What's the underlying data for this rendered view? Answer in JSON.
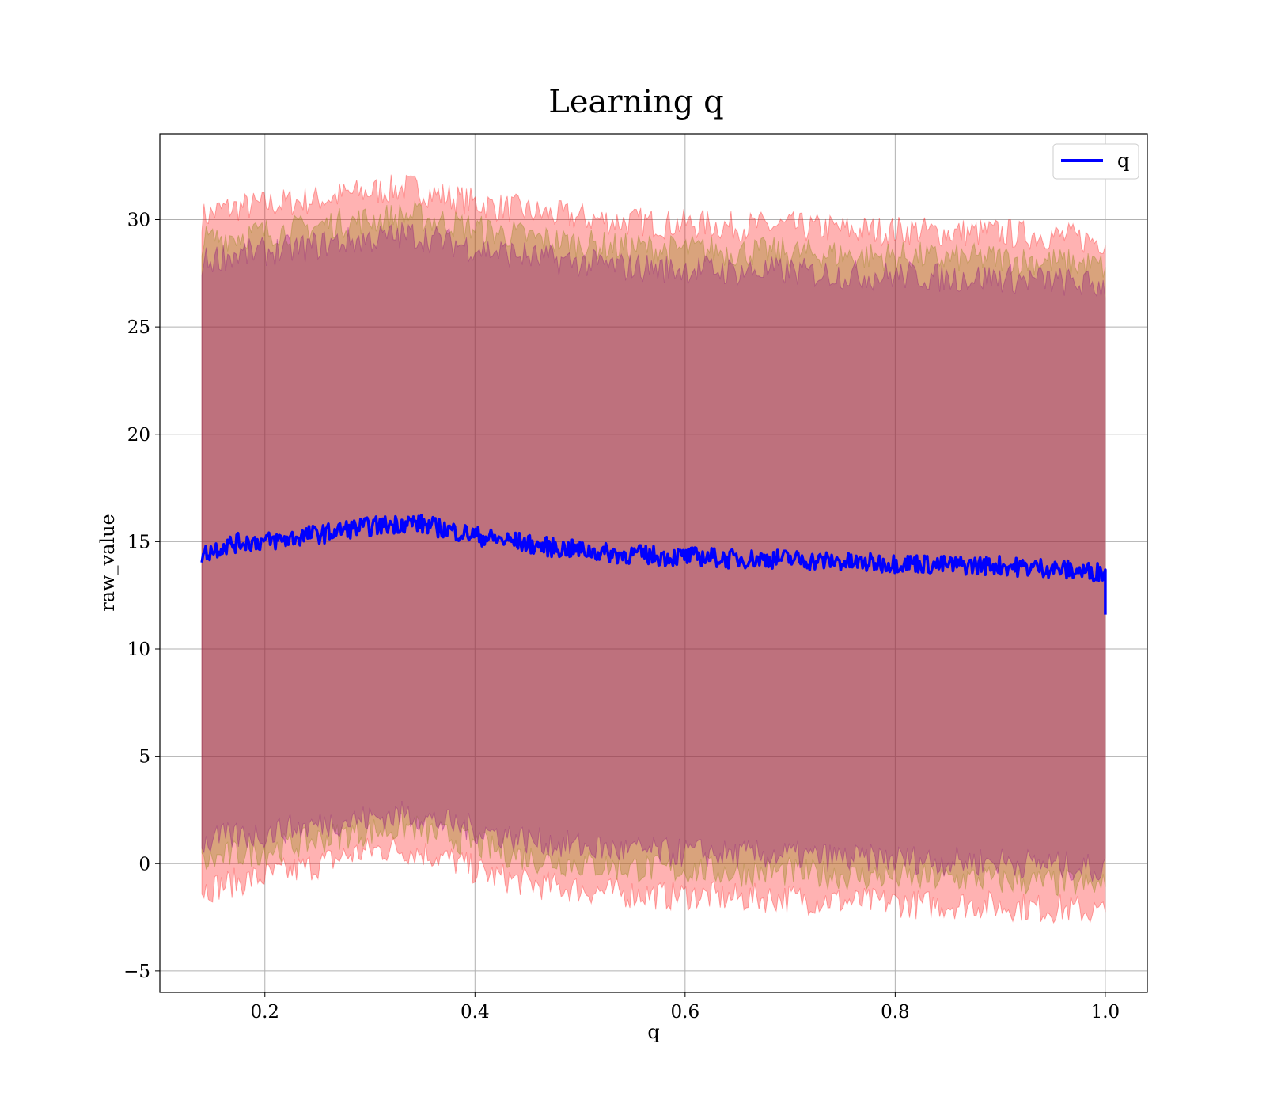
{
  "chart_data": {
    "type": "line",
    "title": "Learning q",
    "xlabel": "q",
    "ylabel": "raw_value",
    "xlim": [
      0.1,
      1.04
    ],
    "ylim": [
      -6,
      34
    ],
    "x_ticks": [
      0.2,
      0.4,
      0.6,
      0.8,
      1.0
    ],
    "x_tick_labels": [
      "0.2",
      "0.4",
      "0.6",
      "0.8",
      "1.0"
    ],
    "y_ticks": [
      -5,
      0,
      5,
      10,
      15,
      20,
      25,
      30
    ],
    "y_tick_labels": [
      "−5",
      "0",
      "5",
      "10",
      "15",
      "20",
      "25",
      "30"
    ],
    "grid": true,
    "legend": {
      "position": "top-right",
      "entries": [
        "q"
      ]
    },
    "series": [
      {
        "name": "q",
        "color": "#0000ff",
        "x": [
          0.14,
          0.16,
          0.18,
          0.2,
          0.22,
          0.24,
          0.26,
          0.28,
          0.3,
          0.32,
          0.34,
          0.36,
          0.38,
          0.4,
          0.42,
          0.44,
          0.46,
          0.48,
          0.5,
          0.52,
          0.54,
          0.56,
          0.58,
          0.6,
          0.62,
          0.64,
          0.66,
          0.68,
          0.7,
          0.72,
          0.74,
          0.76,
          0.78,
          0.8,
          0.82,
          0.84,
          0.86,
          0.88,
          0.9,
          0.92,
          0.94,
          0.96,
          0.98,
          1.0
        ],
        "y": [
          14.4,
          14.8,
          15.0,
          15.0,
          15.1,
          15.3,
          15.4,
          15.6,
          15.7,
          15.8,
          15.9,
          15.7,
          15.5,
          15.3,
          15.1,
          15.0,
          14.8,
          14.7,
          14.6,
          14.5,
          14.4,
          14.4,
          14.3,
          14.3,
          14.3,
          14.2,
          14.2,
          14.2,
          14.2,
          14.1,
          14.1,
          14.0,
          14.0,
          14.0,
          14.0,
          13.9,
          13.9,
          13.9,
          13.9,
          13.8,
          13.8,
          13.7,
          13.6,
          13.6
        ]
      }
    ],
    "bands": [
      {
        "color": "#ff0000",
        "opacity": 0.3,
        "x": [
          0.14,
          0.16,
          0.18,
          0.2,
          0.22,
          0.24,
          0.26,
          0.28,
          0.3,
          0.32,
          0.34,
          0.36,
          0.38,
          0.4,
          0.42,
          0.44,
          0.46,
          0.48,
          0.5,
          0.52,
          0.54,
          0.56,
          0.58,
          0.6,
          0.62,
          0.64,
          0.66,
          0.68,
          0.7,
          0.72,
          0.74,
          0.76,
          0.78,
          0.8,
          0.82,
          0.84,
          0.86,
          0.88,
          0.9,
          0.92,
          0.94,
          0.96,
          0.98,
          1.0
        ],
        "lower": [
          -1.2,
          -1.0,
          -0.8,
          -0.6,
          -0.4,
          -0.2,
          0.1,
          0.4,
          0.6,
          0.7,
          0.6,
          0.4,
          0.1,
          -0.3,
          -0.6,
          -0.8,
          -1.0,
          -1.1,
          -1.2,
          -1.3,
          -1.4,
          -1.4,
          -1.5,
          -1.5,
          -1.5,
          -1.6,
          -1.6,
          -1.6,
          -1.6,
          -1.7,
          -1.7,
          -1.8,
          -1.8,
          -1.8,
          -1.9,
          -1.9,
          -1.9,
          -1.9,
          -2.0,
          -2.0,
          -2.1,
          -2.1,
          -2.2,
          -2.3
        ],
        "upper": [
          30.1,
          30.5,
          30.6,
          30.7,
          30.8,
          30.9,
          31.0,
          31.2,
          31.3,
          31.4,
          31.5,
          31.2,
          31.0,
          30.8,
          30.6,
          30.5,
          30.3,
          30.2,
          30.1,
          30.0,
          29.9,
          29.9,
          29.8,
          29.8,
          29.8,
          29.7,
          29.7,
          29.7,
          29.7,
          29.6,
          29.6,
          29.5,
          29.5,
          29.5,
          29.5,
          29.4,
          29.4,
          29.4,
          29.4,
          29.3,
          29.3,
          29.2,
          29.1,
          29.0
        ]
      },
      {
        "color": "#808000",
        "opacity": 0.3,
        "x": [
          0.14,
          0.16,
          0.18,
          0.2,
          0.22,
          0.24,
          0.26,
          0.28,
          0.3,
          0.32,
          0.34,
          0.36,
          0.38,
          0.4,
          0.42,
          0.44,
          0.46,
          0.48,
          0.5,
          0.52,
          0.54,
          0.56,
          0.58,
          0.6,
          0.62,
          0.64,
          0.66,
          0.68,
          0.7,
          0.72,
          0.74,
          0.76,
          0.78,
          0.8,
          0.82,
          0.84,
          0.86,
          0.88,
          0.9,
          0.92,
          0.94,
          0.96,
          0.98,
          1.0
        ],
        "lower": [
          0.0,
          0.3,
          0.5,
          0.6,
          0.8,
          1.0,
          1.2,
          1.4,
          1.5,
          1.6,
          1.7,
          1.4,
          1.2,
          0.9,
          0.6,
          0.4,
          0.2,
          0.1,
          0.0,
          -0.1,
          -0.2,
          -0.2,
          -0.3,
          -0.3,
          -0.3,
          -0.4,
          -0.4,
          -0.4,
          -0.4,
          -0.5,
          -0.5,
          -0.6,
          -0.6,
          -0.6,
          -0.7,
          -0.7,
          -0.7,
          -0.7,
          -0.8,
          -0.8,
          -0.9,
          -0.9,
          -1.0,
          -1.1
        ],
        "upper": [
          29.0,
          29.2,
          29.3,
          29.4,
          29.5,
          29.6,
          29.8,
          29.9,
          30.0,
          30.1,
          30.2,
          30.0,
          29.8,
          29.6,
          29.4,
          29.3,
          29.1,
          29.0,
          28.9,
          28.8,
          28.7,
          28.7,
          28.6,
          28.6,
          28.6,
          28.5,
          28.5,
          28.5,
          28.5,
          28.4,
          28.4,
          28.3,
          28.3,
          28.3,
          28.3,
          28.2,
          28.2,
          28.2,
          28.2,
          28.1,
          28.1,
          28.0,
          27.9,
          27.8
        ]
      },
      {
        "color": "#800080",
        "opacity": 0.3,
        "x": [
          0.14,
          0.16,
          0.18,
          0.2,
          0.22,
          0.24,
          0.26,
          0.28,
          0.3,
          0.32,
          0.34,
          0.36,
          0.38,
          0.4,
          0.42,
          0.44,
          0.46,
          0.48,
          0.5,
          0.52,
          0.54,
          0.56,
          0.58,
          0.6,
          0.62,
          0.64,
          0.66,
          0.68,
          0.7,
          0.72,
          0.74,
          0.76,
          0.78,
          0.8,
          0.82,
          0.84,
          0.86,
          0.88,
          0.9,
          0.92,
          0.94,
          0.96,
          0.98,
          1.0
        ],
        "lower": [
          0.9,
          1.2,
          1.3,
          1.4,
          1.6,
          1.7,
          1.9,
          2.0,
          2.1,
          2.2,
          2.3,
          2.0,
          1.8,
          1.6,
          1.4,
          1.2,
          1.0,
          0.9,
          0.8,
          0.7,
          0.6,
          0.6,
          0.5,
          0.5,
          0.5,
          0.4,
          0.4,
          0.4,
          0.4,
          0.3,
          0.3,
          0.2,
          0.2,
          0.2,
          0.2,
          0.1,
          0.1,
          0.1,
          0.1,
          0.0,
          0.0,
          -0.1,
          -0.2,
          -0.3
        ],
        "upper": [
          28.0,
          28.3,
          28.4,
          28.5,
          28.6,
          28.7,
          28.9,
          29.0,
          29.1,
          29.2,
          29.3,
          29.1,
          28.9,
          28.7,
          28.5,
          28.4,
          28.2,
          28.1,
          28.0,
          27.9,
          27.8,
          27.8,
          27.7,
          27.7,
          27.7,
          27.6,
          27.6,
          27.6,
          27.6,
          27.5,
          27.5,
          27.4,
          27.4,
          27.4,
          27.4,
          27.3,
          27.3,
          27.3,
          27.3,
          27.2,
          27.2,
          27.1,
          27.0,
          26.9
        ]
      }
    ]
  }
}
